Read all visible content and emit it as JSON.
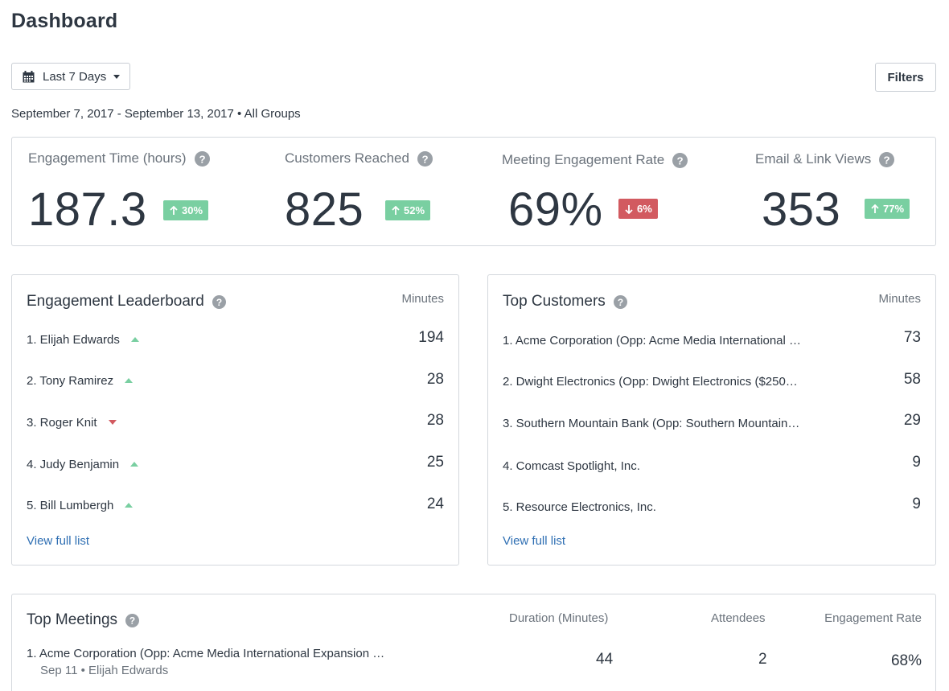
{
  "page": {
    "title": "Dashboard"
  },
  "toolbar": {
    "date_range_label": "Last 7 Days",
    "filters_label": "Filters"
  },
  "summary": {
    "date_range": "September 7, 2017 - September 13, 2017",
    "separator": "•",
    "group": "All Groups"
  },
  "kpis": [
    {
      "label": "Engagement Time (hours)",
      "value": "187.3",
      "change": "30%",
      "direction": "up"
    },
    {
      "label": "Customers Reached",
      "value": "825",
      "change": "52%",
      "direction": "up"
    },
    {
      "label": "Meeting Engagement Rate",
      "value": "69%",
      "change": "6%",
      "direction": "down"
    },
    {
      "label": "Email & Link Views",
      "value": "353",
      "change": "77%",
      "direction": "up"
    }
  ],
  "leaderboard": {
    "title": "Engagement Leaderboard",
    "column": "Minutes",
    "rows": [
      {
        "label": "1. Elijah Edwards",
        "value": "194",
        "trend": "up"
      },
      {
        "label": "2. Tony Ramirez",
        "value": "28",
        "trend": "up"
      },
      {
        "label": "3. Roger Knit",
        "value": "28",
        "trend": "down"
      },
      {
        "label": "4. Judy Benjamin",
        "value": "25",
        "trend": "up"
      },
      {
        "label": "5. Bill Lumbergh",
        "value": "24",
        "trend": "up"
      }
    ],
    "link": "View full list"
  },
  "top_customers": {
    "title": "Top Customers",
    "column": "Minutes",
    "rows": [
      {
        "label": "1. Acme Corporation (Opp: Acme Media International …",
        "value": "73"
      },
      {
        "label": "2. Dwight Electronics (Opp: Dwight Electronics ($250…",
        "value": "58"
      },
      {
        "label": "3. Southern Mountain Bank (Opp: Southern Mountain…",
        "value": "29"
      },
      {
        "label": "4. Comcast Spotlight, Inc.",
        "value": "9"
      },
      {
        "label": "5. Resource Electronics, Inc.",
        "value": "9"
      }
    ],
    "link": "View full list"
  },
  "top_meetings": {
    "title": "Top Meetings",
    "columns": {
      "duration": "Duration (Minutes)",
      "attendees": "Attendees",
      "rate": "Engagement Rate"
    },
    "rows": [
      {
        "title": "1. Acme Corporation (Opp: Acme Media International Expansion …",
        "date": "Sep 11",
        "separator": "•",
        "owner": "Elijah Edwards",
        "duration": "44",
        "attendees": "2",
        "rate": "68%"
      }
    ]
  },
  "colors": {
    "text": "#2e3742",
    "muted": "#6b737c",
    "up": "#79cfa1",
    "down": "#d25a60",
    "link": "#2f6fb3",
    "border": "#d4d8dd"
  },
  "icons": {
    "calendar": "calendar-icon",
    "caret": "caret-down-icon",
    "help": "question-circle-icon",
    "arrow_up": "arrow-up-icon",
    "arrow_down": "arrow-down-icon",
    "trend_up": "triangle-up-icon",
    "trend_down": "triangle-down-icon"
  }
}
